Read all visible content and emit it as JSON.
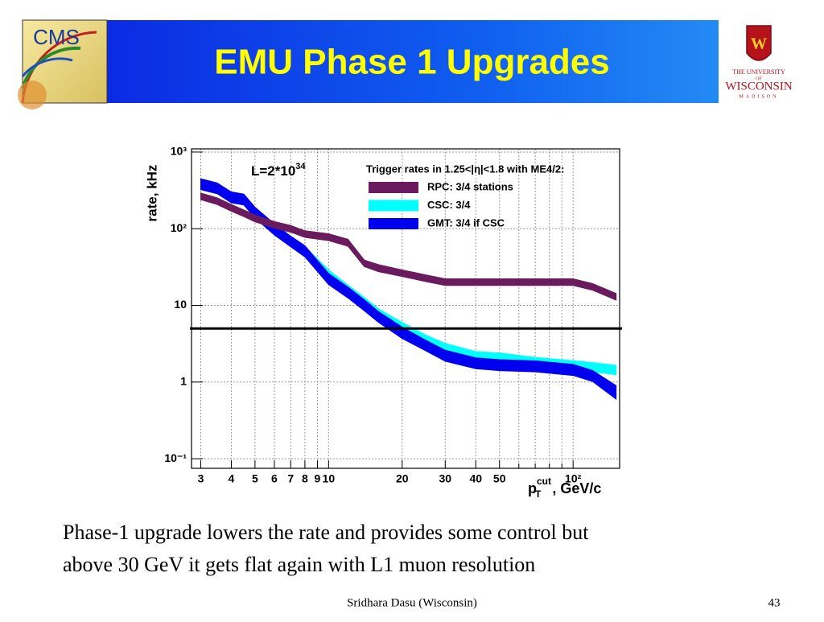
{
  "header": {
    "title": "EMU Phase 1 Upgrades",
    "left_logo": "CMS",
    "right_logo": [
      "THE UNIVERSITY",
      "OF",
      "WISCONSIN",
      "MADISON"
    ]
  },
  "chart_data": {
    "type": "band",
    "log_x": true,
    "log_y": true,
    "grid": true,
    "annotation": {
      "text": "L=2*10",
      "sup": "34"
    },
    "legend_title": "Trigger rates in 1.25<|η|<1.8 with ME4/2:",
    "y_label": "rate, kHz",
    "x_label": {
      "base": "p",
      "sup": "cut",
      "sub": "T",
      "rest": ", GeV/c"
    },
    "xlim": [
      2.75,
      155
    ],
    "ylim": [
      0.075,
      1100
    ],
    "xticks": [
      3,
      4,
      5,
      6,
      7,
      8,
      9,
      10,
      20,
      30,
      40,
      50,
      {
        "value": 100,
        "label": "10²"
      }
    ],
    "xminor_ticks": [
      60,
      70,
      80,
      90
    ],
    "yticks": [
      {
        "value": 0.1,
        "label": "10⁻¹"
      },
      1,
      10,
      {
        "value": 100,
        "label": "10²"
      },
      {
        "value": 1000,
        "label": "10³"
      }
    ],
    "reference_line": 5,
    "x": [
      3,
      3.5,
      4,
      4.5,
      5,
      6,
      7,
      8,
      10,
      12,
      14,
      16,
      20,
      25,
      30,
      40,
      50,
      70,
      100,
      120,
      150
    ],
    "series": [
      {
        "name": "CSC: 3/4",
        "color": "#00ffff",
        "high": [
          437,
          386,
          294,
          276,
          186,
          113,
          78,
          59,
          29,
          18.4,
          12.7,
          9,
          6,
          4.1,
          3.2,
          2.5,
          2.4,
          2.1,
          1.9,
          1.8,
          1.65
        ],
        "low": [
          331,
          292,
          223,
          209,
          141,
          85,
          59,
          44,
          21.8,
          13.9,
          9.6,
          6.8,
          4.5,
          3.1,
          2.4,
          1.9,
          1.8,
          1.57,
          1.44,
          1.35,
          1.25
        ]
      },
      {
        "name": "GMT: 3/4 if CSC",
        "color": "#0000ee",
        "high": [
          448,
          396,
          302,
          283,
          191,
          116,
          80,
          60,
          26,
          17.3,
          11.8,
          8.3,
          5.2,
          3.5,
          2.6,
          2.07,
          1.96,
          1.89,
          1.7,
          1.42,
          0.9
        ],
        "low": [
          323,
          286,
          218,
          204,
          138,
          83,
          58,
          43,
          18.7,
          12.5,
          8.5,
          6,
          3.7,
          2.55,
          1.87,
          1.49,
          1.41,
          1.36,
          1.22,
          1.02,
          0.6
        ]
      },
      {
        "name": "RPC: 3/4 stations",
        "color": "#6a1b5e",
        "high": [
          292,
          253,
          207,
          176,
          151,
          124,
          110,
          94,
          86,
          73,
          39,
          34,
          29,
          25,
          22.2,
          22.2,
          22.2,
          22.2,
          22.2,
          19.3,
          14.3
        ],
        "low": [
          239,
          207,
          169,
          144,
          123,
          102,
          90,
          77,
          70,
          59,
          32,
          27.5,
          23.8,
          20.4,
          18.2,
          18.2,
          18.2,
          18.2,
          18.2,
          15.8,
          11.7
        ]
      }
    ],
    "legend_order": [
      2,
      0,
      1
    ]
  },
  "body": [
    "Phase-1 upgrade lowers the rate and provides some control but",
    "above 30 GeV it gets flat again with L1 muon resolution"
  ],
  "footer": {
    "author": "Sridhara Dasu (Wisconsin)",
    "page": "43"
  }
}
